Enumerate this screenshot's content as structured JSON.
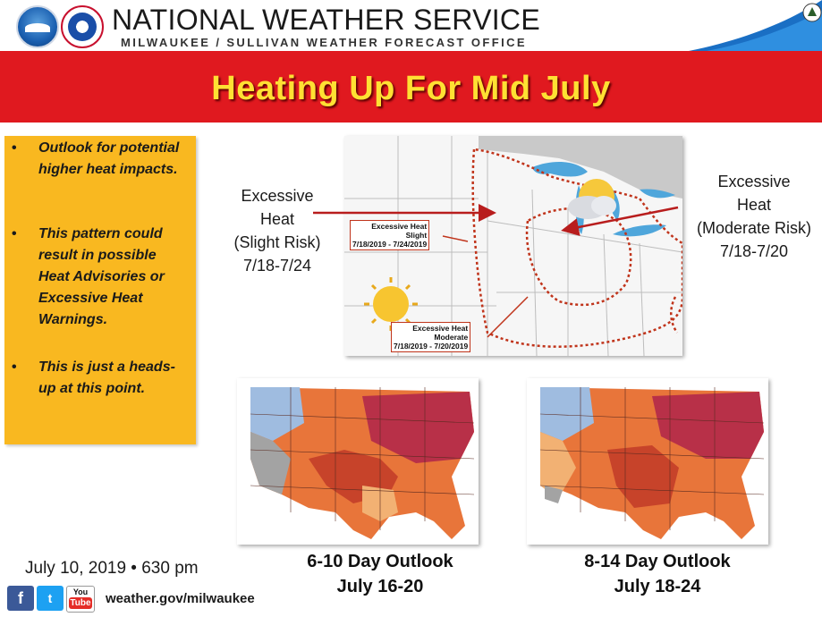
{
  "header": {
    "title": "NATIONAL WEATHER SERVICE",
    "subtitle": "MILWAUKEE / SULLIVAN WEATHER FORECAST OFFICE",
    "noaa_logo_text": "NOAA"
  },
  "banner": {
    "title": "Heating Up For Mid July"
  },
  "bullets": [
    {
      "text": "Outlook for potential higher heat impacts."
    },
    {
      "text": "This pattern could result in possible Heat Advisories or Excessive Heat Warnings."
    },
    {
      "text": "This is just a heads-up at this point."
    }
  ],
  "risk_map": {
    "left_label_line1": "Excessive",
    "left_label_line2": "Heat",
    "left_label_line3": "(Slight Risk)",
    "left_label_line4": "7/18-7/24",
    "right_label_line1": "Excessive",
    "right_label_line2": "Heat",
    "right_label_line3": "(Moderate Risk)",
    "right_label_line4": "7/18-7/20",
    "slight_box_line1": "Excessive Heat",
    "slight_box_line2": "Slight",
    "slight_box_line3": "7/18/2019 - 7/24/2019",
    "moderate_box_line1": "Excessive Heat",
    "moderate_box_line2": "Moderate",
    "moderate_box_line3": "7/18/2019 - 7/20/2019"
  },
  "outlooks": [
    {
      "title": "6-10 Day Outlook",
      "dates": "July 16-20"
    },
    {
      "title": "8-14 Day Outlook",
      "dates": "July 18-24"
    }
  ],
  "footer": {
    "date": "July 10, 2019 • 630 pm",
    "url": "weather.gov/milwaukee",
    "facebook_glyph": "f",
    "twitter_glyph": "t",
    "youtube_top": "You",
    "youtube_bottom": "Tube"
  },
  "colors": {
    "banner_red": "#e0191f",
    "banner_text": "#ffe033",
    "bullet_box": "#f9b820",
    "risk_line": "#c0341b"
  }
}
